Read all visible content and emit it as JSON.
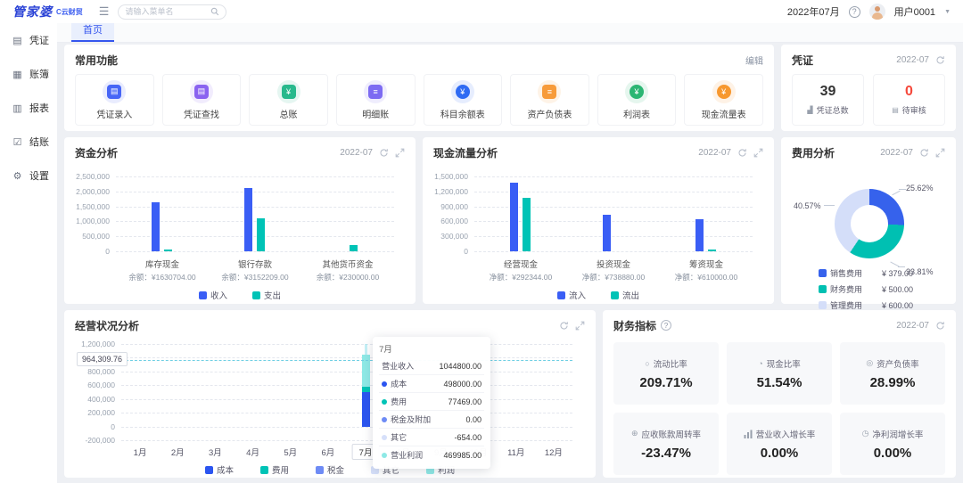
{
  "header": {
    "logo": "管家婆",
    "logo_suffix": "C云财贸",
    "search_placeholder": "请输入菜单名",
    "period": "2022年07月",
    "help_glyph": "?",
    "user": "用户0001"
  },
  "sidebar": {
    "items": [
      {
        "label": "凭证",
        "icon": "voucher-icon"
      },
      {
        "label": "账簿",
        "icon": "ledger-icon"
      },
      {
        "label": "报表",
        "icon": "report-icon"
      },
      {
        "label": "结账",
        "icon": "closing-icon"
      },
      {
        "label": "设置",
        "icon": "settings-icon"
      }
    ]
  },
  "tabs": [
    {
      "label": "首页"
    }
  ],
  "quick_functions": {
    "title": "常用功能",
    "edit_label": "编辑",
    "items": [
      {
        "label": "凭证录入",
        "icon": "voucher-entry-icon",
        "color": "#4766f6"
      },
      {
        "label": "凭证查找",
        "icon": "voucher-search-icon",
        "color": "#8a63f0"
      },
      {
        "label": "总账",
        "icon": "general-ledger-icon",
        "color": "#27b98c"
      },
      {
        "label": "明细账",
        "icon": "detail-ledger-icon",
        "color": "#7d6bf2"
      },
      {
        "label": "科目余额表",
        "icon": "account-balance-icon",
        "color": "#2f6bf3"
      },
      {
        "label": "资产负债表",
        "icon": "balance-sheet-icon",
        "color": "#f79b3a"
      },
      {
        "label": "利润表",
        "icon": "income-statement-icon",
        "color": "#2bb673"
      },
      {
        "label": "现金流量表",
        "icon": "cashflow-statement-icon",
        "color": "#f7982f"
      }
    ]
  },
  "voucher_panel": {
    "title": "凭证",
    "period": "2022-07",
    "stats": [
      {
        "value": "39",
        "label": "凭证总数",
        "icon": "voucher-count-icon",
        "color": "#333333"
      },
      {
        "value": "0",
        "label": "待审核",
        "icon": "pending-review-icon",
        "color": "#f5483b"
      }
    ]
  },
  "chart_data": [
    {
      "id": "funds",
      "type": "bar",
      "title": "资金分析",
      "period": "2022-07",
      "categories": [
        "库存现金",
        "银行存款",
        "其他货币资金"
      ],
      "sublabels": [
        "余额：¥1630704.00",
        "余额：¥3152209.00",
        "余额：¥230000.00"
      ],
      "series": [
        {
          "name": "收入",
          "color": "#3a5ef5",
          "values": [
            1650000,
            2100000,
            0
          ]
        },
        {
          "name": "支出",
          "color": "#00c3b6",
          "values": [
            40000,
            1090000,
            200000
          ]
        }
      ],
      "ylim": [
        0,
        2500000
      ],
      "yticks": [
        "2,500,000",
        "2,000,000",
        "1,500,000",
        "1,000,000",
        "500,000",
        "0"
      ]
    },
    {
      "id": "cashflow",
      "type": "bar",
      "title": "现金流量分析",
      "period": "2022-07",
      "categories": [
        "经营现金",
        "投资现金",
        "筹资现金"
      ],
      "sublabels": [
        "净额：¥292344.00",
        "净额：¥738880.00",
        "净额：¥610000.00"
      ],
      "series": [
        {
          "name": "流入",
          "color": "#3a5ef5",
          "values": [
            1370000,
            740000,
            650000
          ]
        },
        {
          "name": "流出",
          "color": "#00c3b6",
          "values": [
            1080000,
            0,
            40000
          ]
        }
      ],
      "ylim": [
        0,
        1500000
      ],
      "yticks": [
        "1,500,000",
        "1,200,000",
        "900,000",
        "600,000",
        "300,000",
        "0"
      ]
    },
    {
      "id": "expense",
      "type": "pie",
      "title": "费用分析",
      "period": "2022-07",
      "slices": [
        {
          "name": "销售费用",
          "pct": 25.62,
          "pct_label": "25.62%",
          "amount": "¥ 379.00",
          "color": "#3662ec"
        },
        {
          "name": "财务费用",
          "pct": 33.81,
          "pct_label": "33.81%",
          "amount": "¥ 500.00",
          "color": "#00c0b2"
        },
        {
          "name": "管理费用",
          "pct": 40.57,
          "pct_label": "40.57%",
          "amount": "¥ 600.00",
          "color": "#d4def9"
        }
      ]
    },
    {
      "id": "operating",
      "type": "bar",
      "title": "经营状况分析",
      "months": [
        "1月",
        "2月",
        "3月",
        "4月",
        "5月",
        "6月",
        "7月",
        "8月",
        "9月",
        "10月",
        "11月",
        "12月"
      ],
      "highlight_month": "7月",
      "highlight_index": 6,
      "ylim": [
        -200000,
        1200000
      ],
      "yticks": [
        "1,200,000",
        "1,000,000",
        "800,000",
        "600,000",
        "400,000",
        "200,000",
        "0",
        "-200,000"
      ],
      "marker": {
        "label": "964,309.76",
        "value": 964309.76
      },
      "bar": {
        "month": "7月",
        "segments": [
          {
            "name": "成本",
            "value": 498000,
            "color": "#2b55f0"
          },
          {
            "name": "费用",
            "value": 77469,
            "color": "#00c3b6"
          },
          {
            "name": "利润",
            "value": 469985,
            "color": "#8ee9e6"
          }
        ]
      },
      "tooltip": {
        "title": "7月",
        "rows": [
          {
            "label": "营业收入",
            "value": "1044800.00",
            "dot": null
          },
          {
            "label": "成本",
            "value": "498000.00",
            "dot": "#2b55f0"
          },
          {
            "label": "费用",
            "value": "77469.00",
            "dot": "#00c3b6"
          },
          {
            "label": "税金及附加",
            "value": "0.00",
            "dot": "#6e8bf5"
          },
          {
            "label": "其它",
            "value": "-654.00",
            "dot": "#d6e0fa"
          },
          {
            "label": "营业利润",
            "value": "469985.00",
            "dot": "#8ee9e6"
          }
        ]
      },
      "legend": [
        {
          "name": "成本",
          "color": "#2b55f0"
        },
        {
          "name": "费用",
          "color": "#00c3b6"
        },
        {
          "name": "税金",
          "color": "#6e8bf5"
        },
        {
          "name": "其它",
          "color": "#d6e0fa"
        },
        {
          "name": "利润",
          "color": "#8ee9e6"
        }
      ]
    }
  ],
  "indicators": {
    "title": "财务指标",
    "help_glyph": "?",
    "period": "2022-07",
    "items": [
      {
        "label": "流动比率",
        "value": "209.71%",
        "icon": "liquidity-ratio-icon"
      },
      {
        "label": "现金比率",
        "value": "51.54%",
        "icon": "cash-ratio-icon"
      },
      {
        "label": "资产负债率",
        "value": "28.99%",
        "icon": "debt-ratio-icon"
      },
      {
        "label": "应收账款周转率",
        "value": "-23.47%",
        "icon": "receivable-turnover-icon"
      },
      {
        "label": "营业收入增长率",
        "value": "0.00%",
        "icon": "revenue-growth-icon"
      },
      {
        "label": "净利润增长率",
        "value": "0.00%",
        "icon": "profit-growth-icon"
      }
    ]
  }
}
